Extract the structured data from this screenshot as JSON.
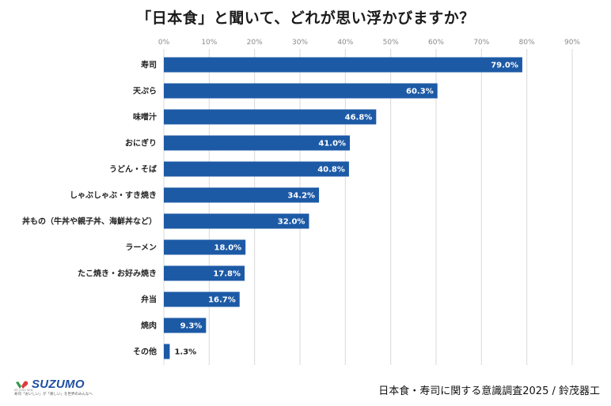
{
  "title": "「日本食」と聞いて、どれが思い浮かびますか？",
  "source_note": "日本食・寿司に関する意識調査2025 / 鈴茂器工",
  "logo": {
    "name": "SUZUMO",
    "small_text": "MT JOSO SEKI",
    "tagline": "寿司「おいしい」が「楽しい」を世界のみんなへ"
  },
  "colors": {
    "bar": "#1d5aa6",
    "grid": "#d9d9d9",
    "logo": "#1f4fa3",
    "logo_accent": "#e03a3a",
    "logo_green": "#2e9a48"
  },
  "chart_data": {
    "type": "bar",
    "orientation": "horizontal",
    "title": "「日本食」と聞いて、どれが思い浮かびますか？",
    "categories": [
      "寿司",
      "天ぷら",
      "味噌汁",
      "おにぎり",
      "うどん・そば",
      "しゃぶしゃぶ・すき焼き",
      "丼もの（牛丼や親子丼、海鮮丼など）",
      "ラーメン",
      "たこ焼き・お好み焼き",
      "弁当",
      "焼肉",
      "その他"
    ],
    "values": [
      79.0,
      60.3,
      46.8,
      41.0,
      40.8,
      34.2,
      32.0,
      18.0,
      17.8,
      16.7,
      9.3,
      1.3
    ],
    "value_labels": [
      "79.0%",
      "60.3%",
      "46.8%",
      "41.0%",
      "40.8%",
      "34.2%",
      "32.0%",
      "18.0%",
      "17.8%",
      "16.7%",
      "9.3%",
      "1.3%"
    ],
    "xlim": [
      0,
      90
    ],
    "xticks": [
      "0%",
      "10%",
      "20%",
      "30%",
      "40%",
      "50%",
      "60%",
      "70%",
      "80%",
      "90%"
    ],
    "xlabel": "",
    "ylabel": "",
    "grid": true,
    "xaxis_position": "top"
  }
}
